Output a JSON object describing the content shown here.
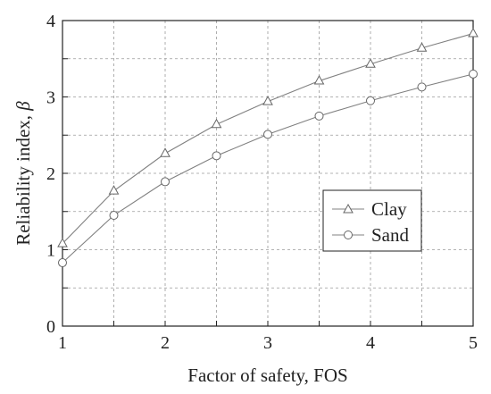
{
  "chart_data": {
    "type": "line",
    "title": "",
    "xlabel": "Factor of safety, FOS",
    "ylabel": "Reliability index, ",
    "ylabel_symbol": "β",
    "xlim": [
      1,
      5
    ],
    "ylim": [
      0,
      4
    ],
    "xticks": [
      1,
      2,
      3,
      4,
      5
    ],
    "yticks": [
      0,
      1,
      2,
      3,
      4
    ],
    "x_minor_step": 0.5,
    "y_minor_step": 0.5,
    "grid": true,
    "legend_position": "right",
    "x": [
      1,
      1.5,
      2,
      2.5,
      3,
      3.5,
      4,
      4.5,
      5
    ],
    "series": [
      {
        "name": "Clay",
        "marker": "triangle",
        "values": [
          1.08,
          1.77,
          2.26,
          2.64,
          2.94,
          3.21,
          3.43,
          3.64,
          3.83
        ]
      },
      {
        "name": "Sand",
        "marker": "circle",
        "values": [
          0.83,
          1.45,
          1.89,
          2.23,
          2.51,
          2.75,
          2.95,
          3.13,
          3.3
        ]
      }
    ],
    "colors": {
      "line": "#808080",
      "axis": "#222222",
      "grid": "#9a9a9a"
    }
  }
}
